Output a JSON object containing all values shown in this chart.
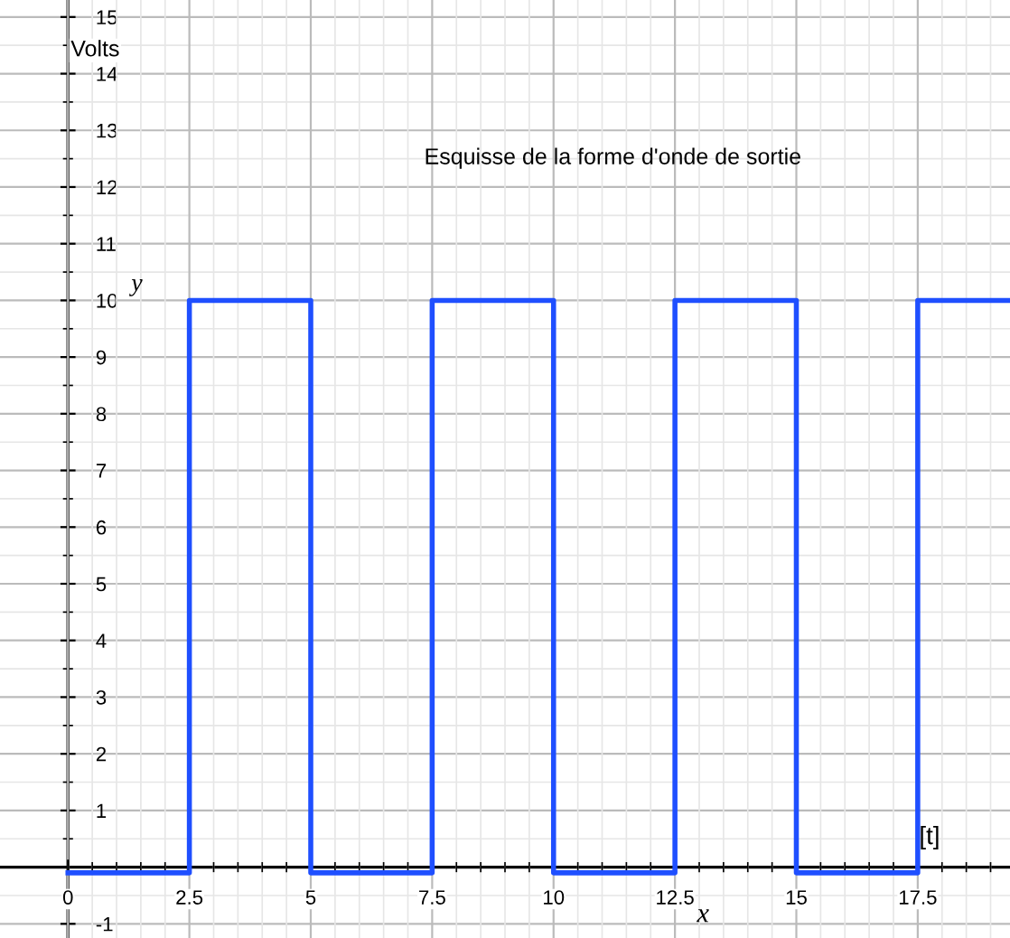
{
  "chart_data": {
    "type": "step",
    "title": "Esquisse de la forme d'onde de sortie",
    "ylabel": "Volts",
    "xlabel": "x",
    "annotations": [
      "y",
      "[t]"
    ],
    "x": [
      0,
      2.5,
      5,
      7.5,
      10,
      12.5,
      15,
      17.5,
      19.4
    ],
    "series": [
      {
        "color": "#1f4fff",
        "values": [
          -0.1,
          10,
          -0.1,
          10,
          -0.1,
          10,
          -0.1,
          10,
          10
        ]
      }
    ],
    "xlim": [
      -1.4,
      19.4
    ],
    "ylim": [
      -1.25,
      15.3
    ],
    "xticks": [
      0,
      2.5,
      5,
      7.5,
      10,
      12.5,
      15,
      17.5
    ],
    "yticks": [
      -1,
      1,
      2,
      3,
      4,
      5,
      6,
      7,
      8,
      9,
      10,
      11,
      12,
      13,
      14,
      15
    ],
    "grid": true,
    "legend": false,
    "marker": "none",
    "line_style": "solid"
  }
}
